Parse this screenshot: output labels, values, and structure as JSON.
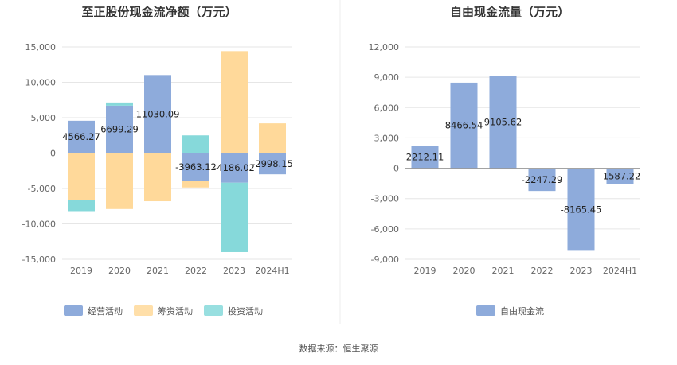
{
  "footer": {
    "source": "数据来源：恒生聚源"
  },
  "colors": {
    "operating": "#8eabdb",
    "financing": "#ffd99a",
    "investing": "#86d9da",
    "fcf": "#8eabdb"
  },
  "chart_data": [
    {
      "type": "bar",
      "stacked": true,
      "title": "至正股份现金流净额（万元）",
      "categories": [
        "2019",
        "2020",
        "2021",
        "2022",
        "2023",
        "2024H1"
      ],
      "ylim": [
        -15000,
        15000
      ],
      "yticks": [
        15000,
        10000,
        5000,
        0,
        -5000,
        -10000,
        -15000
      ],
      "ytick_labels": [
        "15,000",
        "10,000",
        "5,000",
        "0",
        "-5,000",
        "-10,000",
        "-15,000"
      ],
      "grid": true,
      "legend_position": "bottom",
      "series": [
        {
          "name": "经营活动",
          "color_key": "operating",
          "values": [
            4566.27,
            6699.29,
            11030.09,
            -3963.12,
            -4186.02,
            -2998.15
          ],
          "labels": [
            "4566.27",
            "6699.29",
            "11030.09",
            "-3963.12",
            "-4186.02",
            "-2998.15"
          ]
        },
        {
          "name": "筹资活动",
          "color_key": "financing",
          "values": [
            -6600,
            -7900,
            -6800,
            -900,
            14400,
            4200
          ]
        },
        {
          "name": "投资活动",
          "color_key": "investing",
          "values": [
            -1600,
            450,
            0,
            2500,
            -9800,
            0
          ]
        }
      ]
    },
    {
      "type": "bar",
      "title": "自由现金流量（万元）",
      "categories": [
        "2019",
        "2020",
        "2021",
        "2022",
        "2023",
        "2024H1"
      ],
      "ylim": [
        -9000,
        12000
      ],
      "yticks": [
        12000,
        9000,
        6000,
        3000,
        0,
        -3000,
        -6000,
        -9000
      ],
      "ytick_labels": [
        "12,000",
        "9,000",
        "6,000",
        "3,000",
        "0",
        "-3,000",
        "-6,000",
        "-9,000"
      ],
      "grid": true,
      "legend_position": "bottom",
      "series": [
        {
          "name": "自由现金流",
          "color_key": "fcf",
          "values": [
            2212.11,
            8466.54,
            9105.62,
            -2247.29,
            -8165.45,
            -1587.22
          ],
          "labels": [
            "2212.11",
            "8466.54",
            "9105.62",
            "-2247.29",
            "-8165.45",
            "-1587.22"
          ]
        }
      ]
    }
  ]
}
